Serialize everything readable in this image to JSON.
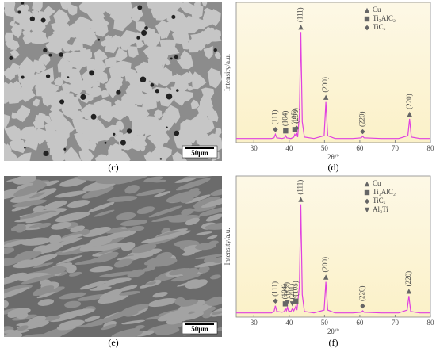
{
  "micrographs": [
    {
      "label": "(c)",
      "scale_bar": "50μm"
    },
    {
      "label": "(e)",
      "scale_bar": "50μm"
    }
  ],
  "chart_data": [
    {
      "type": "line",
      "panel_label": "(d)",
      "ylabel": "Intensity/a.u.",
      "xlabel": "2θ/°",
      "color": "#e040e0",
      "xlim": [
        25,
        80
      ],
      "xticks": [
        30,
        40,
        50,
        60,
        70,
        80
      ],
      "ylim": [
        0,
        100
      ],
      "x": [
        25,
        30,
        35,
        35.7,
        36.1,
        36.5,
        38,
        38.7,
        39.0,
        39.3,
        40.5,
        41.3,
        41.6,
        41.9,
        42.1,
        42.4,
        42.9,
        43.3,
        43.7,
        44.3,
        47,
        49.9,
        50.4,
        50.9,
        53,
        58,
        60.4,
        60.8,
        61.2,
        66,
        71,
        73.6,
        74.1,
        74.6,
        77,
        80
      ],
      "values": [
        3,
        3,
        3,
        3.5,
        6,
        3.5,
        3,
        3.5,
        5,
        3.5,
        3,
        4,
        6,
        5,
        7,
        4,
        20,
        79,
        15,
        4,
        3,
        5,
        29,
        5,
        3,
        3,
        3.5,
        4.5,
        3.5,
        3,
        3,
        5,
        17,
        4,
        3,
        3
      ],
      "legend": [
        {
          "label": "Cu",
          "marker": "triangle"
        },
        {
          "label": "Ti₃AlC₂",
          "marker": "square"
        },
        {
          "label": "TiCₓ",
          "marker": "diamond"
        }
      ],
      "annotations": [
        {
          "x": 36.1,
          "text": "(111)",
          "marker": "diamond"
        },
        {
          "x": 39.0,
          "text": "(104)",
          "marker": "square"
        },
        {
          "x": 41.6,
          "text": "(105)",
          "marker": "square"
        },
        {
          "x": 42.1,
          "text": "(200)",
          "marker": "diamond"
        },
        {
          "x": 43.3,
          "text": "(111)",
          "marker": "triangle"
        },
        {
          "x": 50.4,
          "text": "(200)",
          "marker": "triangle"
        },
        {
          "x": 60.8,
          "text": "(220)",
          "marker": "diamond"
        },
        {
          "x": 74.1,
          "text": "(220)",
          "marker": "triangle"
        }
      ]
    },
    {
      "type": "line",
      "panel_label": "(f)",
      "ylabel": "Intensity/a.u.",
      "xlabel": "2θ/°",
      "color": "#e040e0",
      "xlim": [
        25,
        80
      ],
      "xticks": [
        30,
        40,
        50,
        60,
        70,
        80
      ],
      "ylim": [
        0,
        100
      ],
      "x": [
        25,
        30,
        35,
        35.7,
        36.1,
        36.5,
        38,
        38.6,
        38.9,
        39.2,
        39.5,
        39.8,
        40.5,
        40.9,
        41.3,
        41.6,
        41.9,
        42.2,
        42.9,
        43.3,
        43.7,
        44.3,
        47,
        49.9,
        50.4,
        50.9,
        53,
        58,
        60.4,
        60.8,
        61.2,
        66,
        71,
        73.4,
        73.9,
        74.4,
        77,
        80
      ],
      "values": [
        3,
        3,
        3,
        4,
        8,
        4,
        3.5,
        4,
        6,
        4.5,
        7,
        4.5,
        4,
        6,
        4.5,
        6,
        8,
        5,
        22,
        80,
        16,
        4,
        3,
        5,
        25,
        5,
        3,
        3,
        3.5,
        4.5,
        3.5,
        3,
        3,
        5,
        15,
        4,
        3,
        3
      ],
      "legend": [
        {
          "label": "Cu",
          "marker": "triangle"
        },
        {
          "label": "Ti₃AlC₂",
          "marker": "square"
        },
        {
          "label": "TiCₓ",
          "marker": "diamond"
        },
        {
          "label": "Al₃Ti",
          "marker": "down"
        }
      ],
      "annotations": [
        {
          "x": 36.1,
          "text": "(111)",
          "marker": "diamond"
        },
        {
          "x": 38.9,
          "text": "(104)",
          "marker": "square"
        },
        {
          "x": 39.5,
          "text": "(002)",
          "marker": "down"
        },
        {
          "x": 40.9,
          "text": "(201)",
          "marker": "down"
        },
        {
          "x": 41.9,
          "text": "(105)",
          "marker": "square"
        },
        {
          "x": 43.3,
          "text": "(111)",
          "marker": "triangle"
        },
        {
          "x": 50.4,
          "text": "(200)",
          "marker": "triangle"
        },
        {
          "x": 60.8,
          "text": "(220)",
          "marker": "diamond"
        },
        {
          "x": 73.9,
          "text": "(220)",
          "marker": "triangle"
        }
      ]
    }
  ]
}
